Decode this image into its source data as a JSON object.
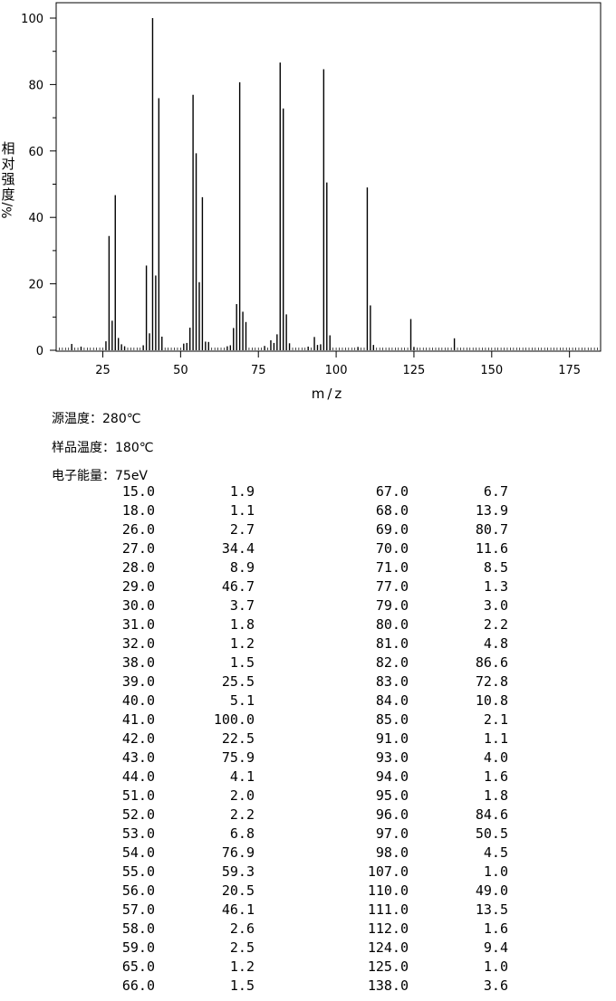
{
  "chart_data": {
    "type": "bar",
    "xlabel": "m/z",
    "ylabel_chars": [
      "相",
      "对",
      "强",
      "度"
    ],
    "ylabel_unit": "%/",
    "xlim": [
      10,
      185
    ],
    "ylim": [
      0,
      100
    ],
    "xticks": [
      25,
      50,
      75,
      100,
      125,
      150,
      175
    ],
    "yticks": [
      0,
      20,
      40,
      60,
      80,
      100
    ],
    "peaks": [
      [
        15.0,
        1.9
      ],
      [
        18.0,
        1.1
      ],
      [
        26.0,
        2.7
      ],
      [
        27.0,
        34.4
      ],
      [
        28.0,
        8.9
      ],
      [
        29.0,
        46.7
      ],
      [
        30.0,
        3.7
      ],
      [
        31.0,
        1.8
      ],
      [
        32.0,
        1.2
      ],
      [
        38.0,
        1.5
      ],
      [
        39.0,
        25.5
      ],
      [
        40.0,
        5.1
      ],
      [
        41.0,
        100.0
      ],
      [
        42.0,
        22.5
      ],
      [
        43.0,
        75.9
      ],
      [
        44.0,
        4.1
      ],
      [
        51.0,
        2.0
      ],
      [
        52.0,
        2.2
      ],
      [
        53.0,
        6.8
      ],
      [
        54.0,
        76.9
      ],
      [
        55.0,
        59.3
      ],
      [
        56.0,
        20.5
      ],
      [
        57.0,
        46.1
      ],
      [
        58.0,
        2.6
      ],
      [
        59.0,
        2.5
      ],
      [
        65.0,
        1.2
      ],
      [
        66.0,
        1.5
      ],
      [
        67.0,
        6.7
      ],
      [
        68.0,
        13.9
      ],
      [
        69.0,
        80.7
      ],
      [
        70.0,
        11.6
      ],
      [
        71.0,
        8.5
      ],
      [
        77.0,
        1.3
      ],
      [
        79.0,
        3.0
      ],
      [
        80.0,
        2.2
      ],
      [
        81.0,
        4.8
      ],
      [
        82.0,
        86.6
      ],
      [
        83.0,
        72.8
      ],
      [
        84.0,
        10.8
      ],
      [
        85.0,
        2.1
      ],
      [
        91.0,
        1.1
      ],
      [
        93.0,
        4.0
      ],
      [
        94.0,
        1.6
      ],
      [
        95.0,
        1.8
      ],
      [
        96.0,
        84.6
      ],
      [
        97.0,
        50.5
      ],
      [
        98.0,
        4.5
      ],
      [
        107.0,
        1.0
      ],
      [
        110.0,
        49.0
      ],
      [
        111.0,
        13.5
      ],
      [
        112.0,
        1.6
      ],
      [
        124.0,
        9.4
      ],
      [
        125.0,
        1.0
      ],
      [
        138.0,
        3.6
      ]
    ]
  },
  "info": {
    "source_temp": "源温度：280℃",
    "sample_temp": "样品温度：180℃",
    "electron_energy": "电子能量：75eV"
  },
  "table": {
    "left": [
      [
        "15.0",
        "1.9"
      ],
      [
        "18.0",
        "1.1"
      ],
      [
        "26.0",
        "2.7"
      ],
      [
        "27.0",
        "34.4"
      ],
      [
        "28.0",
        "8.9"
      ],
      [
        "29.0",
        "46.7"
      ],
      [
        "30.0",
        "3.7"
      ],
      [
        "31.0",
        "1.8"
      ],
      [
        "32.0",
        "1.2"
      ],
      [
        "38.0",
        "1.5"
      ],
      [
        "39.0",
        "25.5"
      ],
      [
        "40.0",
        "5.1"
      ],
      [
        "41.0",
        "100.0"
      ],
      [
        "42.0",
        "22.5"
      ],
      [
        "43.0",
        "75.9"
      ],
      [
        "44.0",
        "4.1"
      ],
      [
        "51.0",
        "2.0"
      ],
      [
        "52.0",
        "2.2"
      ],
      [
        "53.0",
        "6.8"
      ],
      [
        "54.0",
        "76.9"
      ],
      [
        "55.0",
        "59.3"
      ],
      [
        "56.0",
        "20.5"
      ],
      [
        "57.0",
        "46.1"
      ],
      [
        "58.0",
        "2.6"
      ],
      [
        "59.0",
        "2.5"
      ],
      [
        "65.0",
        "1.2"
      ],
      [
        "66.0",
        "1.5"
      ]
    ],
    "right": [
      [
        "67.0",
        "6.7"
      ],
      [
        "68.0",
        "13.9"
      ],
      [
        "69.0",
        "80.7"
      ],
      [
        "70.0",
        "11.6"
      ],
      [
        "71.0",
        "8.5"
      ],
      [
        "77.0",
        "1.3"
      ],
      [
        "79.0",
        "3.0"
      ],
      [
        "80.0",
        "2.2"
      ],
      [
        "81.0",
        "4.8"
      ],
      [
        "82.0",
        "86.6"
      ],
      [
        "83.0",
        "72.8"
      ],
      [
        "84.0",
        "10.8"
      ],
      [
        "85.0",
        "2.1"
      ],
      [
        "91.0",
        "1.1"
      ],
      [
        "93.0",
        "4.0"
      ],
      [
        "94.0",
        "1.6"
      ],
      [
        "95.0",
        "1.8"
      ],
      [
        "96.0",
        "84.6"
      ],
      [
        "97.0",
        "50.5"
      ],
      [
        "98.0",
        "4.5"
      ],
      [
        "107.0",
        "1.0"
      ],
      [
        "110.0",
        "49.0"
      ],
      [
        "111.0",
        "13.5"
      ],
      [
        "112.0",
        "1.6"
      ],
      [
        "124.0",
        "9.4"
      ],
      [
        "125.0",
        "1.0"
      ],
      [
        "138.0",
        "3.6"
      ]
    ]
  }
}
